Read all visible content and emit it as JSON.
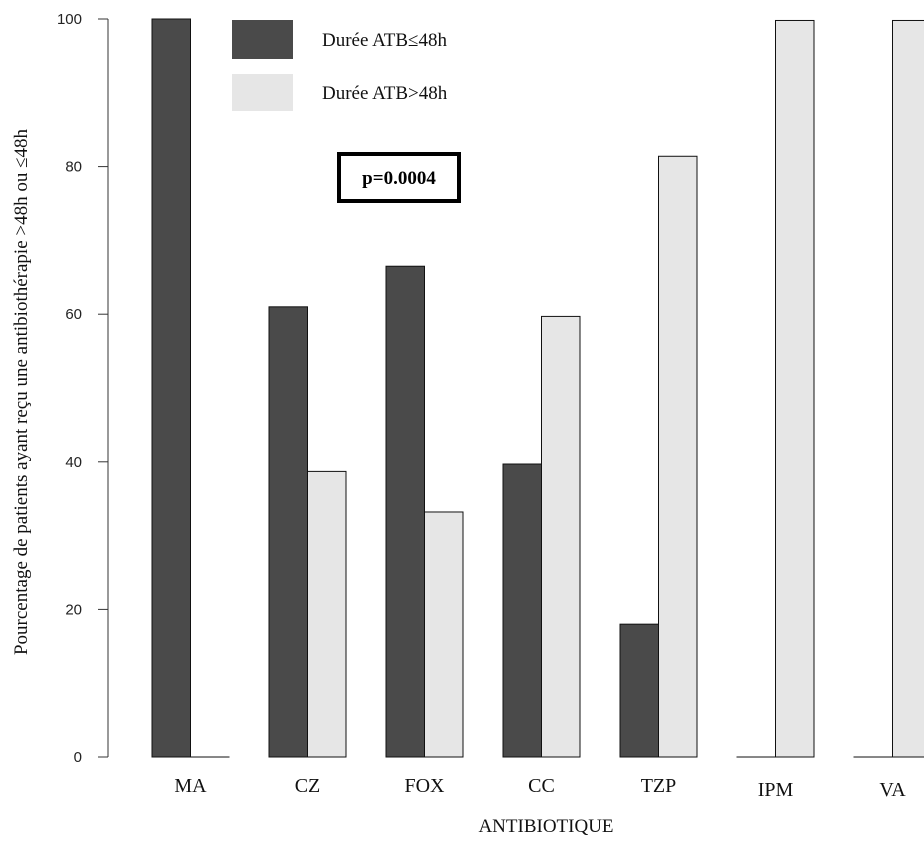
{
  "chart_data": {
    "type": "bar",
    "categories": [
      "MA",
      "CZ",
      "FOX",
      "CC",
      "TZP",
      "IPM",
      "VA"
    ],
    "series": [
      {
        "name": "Durée ATB≤48h",
        "color": "#4a4a4a",
        "values": [
          100,
          61,
          66.5,
          39.7,
          18,
          0,
          0
        ]
      },
      {
        "name": "Durée ATB>48h",
        "color": "#e6e6e6",
        "values": [
          0,
          38.7,
          33.2,
          59.7,
          81.4,
          99.8,
          99.8
        ]
      }
    ],
    "title": "",
    "xlabel": "ANTIBIOTIQUE",
    "ylabel": "Pourcentage de patients ayant reçu une antibiothérapie >48h ou ≤48h",
    "ylim": [
      0,
      100
    ],
    "yticks": [
      0,
      20,
      40,
      60,
      80,
      100
    ],
    "grid": false,
    "legend_position": "top-left",
    "annotation": "p=0.0004"
  }
}
